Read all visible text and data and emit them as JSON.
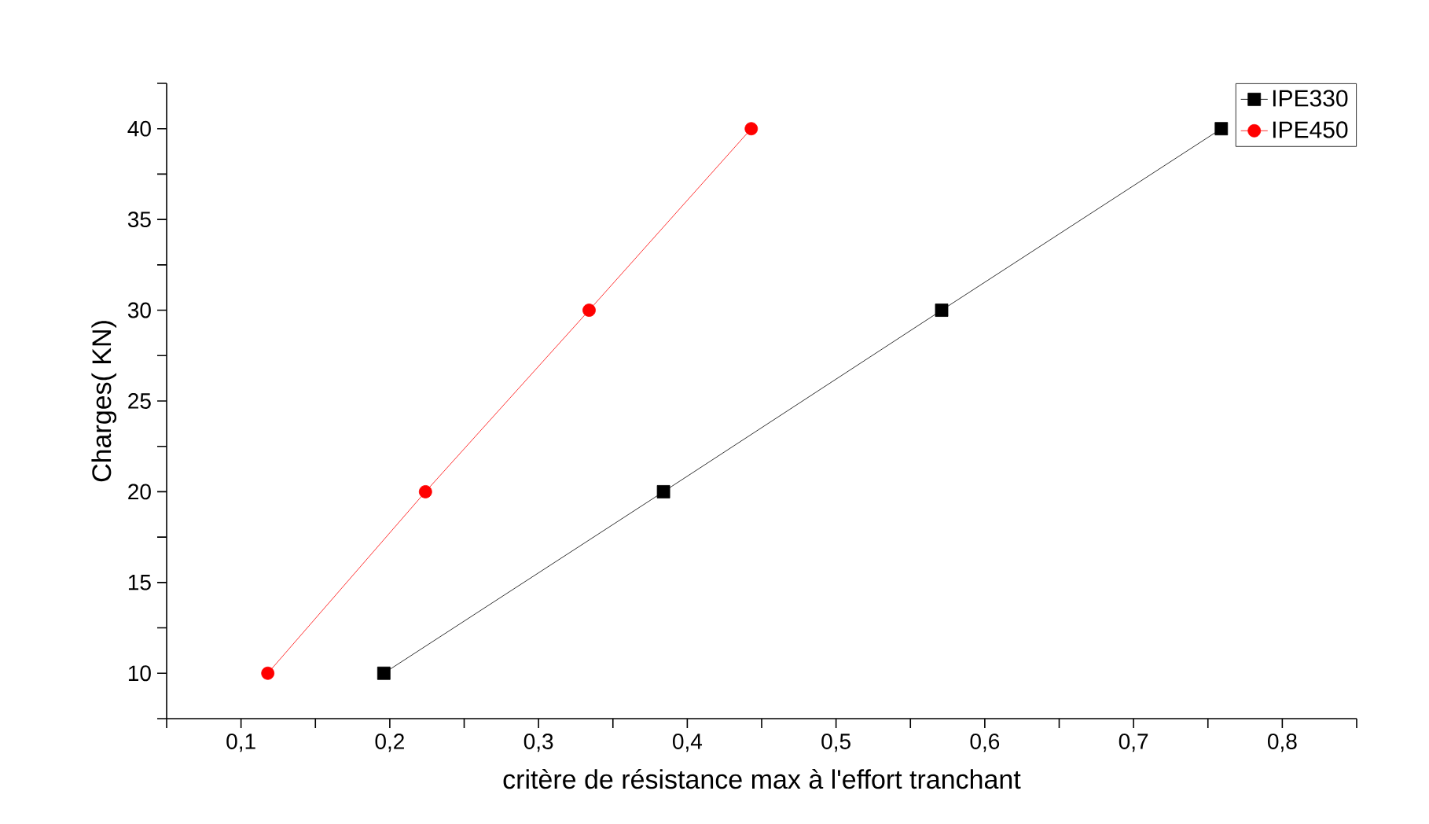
{
  "chart_data": {
    "type": "line",
    "xlabel": "critère de résistance max à l'effort tranchant",
    "ylabel": "Charges( KN)",
    "xlim": [
      0.05,
      0.85
    ],
    "ylim": [
      7.5,
      42.5
    ],
    "xticks": [
      {
        "value": 0.05,
        "label": null
      },
      {
        "value": 0.1,
        "label": "0,1"
      },
      {
        "value": 0.15,
        "label": null
      },
      {
        "value": 0.2,
        "label": "0,2"
      },
      {
        "value": 0.25,
        "label": null
      },
      {
        "value": 0.3,
        "label": "0,3"
      },
      {
        "value": 0.35,
        "label": null
      },
      {
        "value": 0.4,
        "label": "0,4"
      },
      {
        "value": 0.45,
        "label": null
      },
      {
        "value": 0.5,
        "label": "0,5"
      },
      {
        "value": 0.55,
        "label": null
      },
      {
        "value": 0.6,
        "label": "0,6"
      },
      {
        "value": 0.65,
        "label": null
      },
      {
        "value": 0.7,
        "label": "0,7"
      },
      {
        "value": 0.75,
        "label": null
      },
      {
        "value": 0.8,
        "label": "0,8"
      },
      {
        "value": 0.85,
        "label": null
      }
    ],
    "yticks": [
      {
        "value": 7.5,
        "label": null
      },
      10,
      {
        "value": 12.5,
        "label": null
      },
      15,
      {
        "value": 17.5,
        "label": null
      },
      20,
      {
        "value": 22.5,
        "label": null
      },
      25,
      {
        "value": 27.5,
        "label": null
      },
      30,
      {
        "value": 32.5,
        "label": null
      },
      35,
      {
        "value": 37.5,
        "label": null
      },
      40,
      {
        "value": 42.5,
        "label": null
      }
    ],
    "grid": false,
    "legend": "top right",
    "line_style": "solid",
    "series": [
      {
        "name": "IPE330",
        "color": "#000000",
        "marker": "square",
        "x": [
          0.196,
          0.384,
          0.571,
          0.759
        ],
        "values": [
          10,
          20,
          30,
          40
        ]
      },
      {
        "name": "IPE450",
        "color": "#ff0000",
        "marker": "circle",
        "x": [
          0.118,
          0.224,
          0.334,
          0.443
        ],
        "values": [
          10,
          20,
          30,
          40
        ]
      }
    ]
  }
}
